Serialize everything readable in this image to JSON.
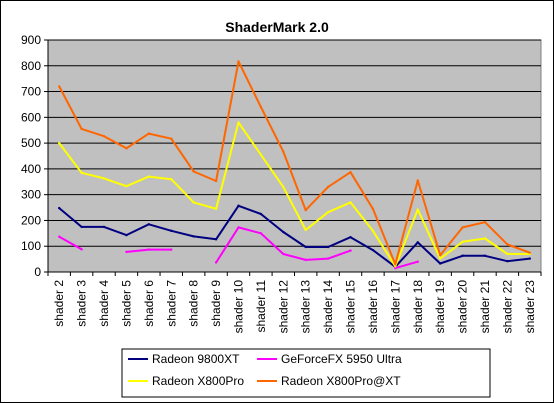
{
  "chart_data": {
    "type": "line",
    "title": "ShaderMark 2.0",
    "xlabel": "",
    "ylabel": "",
    "ylim": [
      0,
      900
    ],
    "yticks": [
      0,
      100,
      200,
      300,
      400,
      500,
      600,
      700,
      800,
      900
    ],
    "grid": true,
    "legend_position": "bottom",
    "plot_background": "#c0c0c0",
    "categories": [
      "shader 2",
      "shader 3",
      "shader 4",
      "shader 5",
      "shader 6",
      "shader 7",
      "shader 8",
      "shader 9",
      "shader 10",
      "shader 11",
      "shader 12",
      "shader 13",
      "shader 14",
      "shader 15",
      "shader 16",
      "shader 17",
      "shader 18",
      "shader 19",
      "shader 20",
      "shader 21",
      "shader 22",
      "shader 23"
    ],
    "series": [
      {
        "name": "Radeon 9800XT",
        "color": "#000080",
        "values": [
          248,
          175,
          175,
          143,
          185,
          160,
          138,
          127,
          257,
          225,
          155,
          97,
          97,
          135,
          85,
          20,
          115,
          33,
          63,
          63,
          42,
          52
        ]
      },
      {
        "name": "GeForceFX 5950 Ultra",
        "color": "#ff00ff",
        "values": [
          137,
          88,
          null,
          78,
          87,
          87,
          null,
          37,
          173,
          150,
          70,
          47,
          52,
          83,
          null,
          15,
          40,
          null,
          null,
          null,
          null,
          null
        ]
      },
      {
        "name": "Radeon X800Pro",
        "color": "#ffff00",
        "values": [
          500,
          385,
          363,
          333,
          370,
          360,
          270,
          245,
          580,
          455,
          330,
          163,
          232,
          270,
          160,
          22,
          242,
          52,
          117,
          130,
          70,
          70
        ]
      },
      {
        "name": "Radeon X800Pro@XT",
        "color": "#ff6600",
        "values": [
          720,
          555,
          527,
          480,
          537,
          517,
          390,
          353,
          817,
          640,
          467,
          240,
          330,
          387,
          245,
          30,
          355,
          65,
          173,
          193,
          107,
          75
        ]
      }
    ]
  }
}
